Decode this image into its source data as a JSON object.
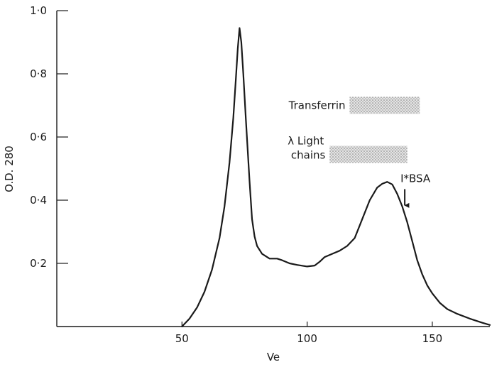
{
  "chart_data": {
    "type": "line",
    "xlabel": "Ve",
    "ylabel": "O.D. 280",
    "xlim": [
      0,
      173
    ],
    "ylim": [
      0,
      1.0
    ],
    "x_ticks": [
      {
        "value": 50,
        "label": "50"
      },
      {
        "value": 100,
        "label": "100"
      },
      {
        "value": 150,
        "label": "150"
      }
    ],
    "y_ticks": [
      {
        "value": 0.2,
        "label": "0·2"
      },
      {
        "value": 0.4,
        "label": "0·4"
      },
      {
        "value": 0.6,
        "label": "0·6"
      },
      {
        "value": 0.8,
        "label": "0·8"
      },
      {
        "value": 1.0,
        "label": "1·0"
      }
    ],
    "grid": false,
    "series": [
      {
        "x": [
          50,
          53,
          56,
          59,
          62,
          65,
          67,
          69,
          70.5,
          71.5,
          72.3,
          73,
          73.7,
          74.5,
          75.5,
          77,
          78,
          79,
          80,
          82,
          85,
          88,
          90,
          93,
          96,
          100,
          103,
          105,
          107,
          110,
          113,
          116,
          119,
          122,
          125,
          128,
          130,
          132,
          134,
          136,
          138,
          140,
          142,
          144,
          146,
          148,
          150,
          153,
          156,
          160,
          165,
          170,
          173
        ],
        "y": [
          0.0,
          0.025,
          0.06,
          0.11,
          0.18,
          0.28,
          0.38,
          0.52,
          0.66,
          0.78,
          0.88,
          0.945,
          0.9,
          0.8,
          0.66,
          0.46,
          0.34,
          0.285,
          0.255,
          0.23,
          0.215,
          0.215,
          0.21,
          0.2,
          0.195,
          0.19,
          0.193,
          0.205,
          0.22,
          0.23,
          0.24,
          0.255,
          0.28,
          0.34,
          0.4,
          0.44,
          0.452,
          0.458,
          0.45,
          0.42,
          0.38,
          0.33,
          0.27,
          0.21,
          0.165,
          0.13,
          0.105,
          0.075,
          0.055,
          0.04,
          0.025,
          0.012,
          0.005
        ]
      }
    ],
    "annotations": [
      {
        "text": "Transferrin",
        "band": [
          117,
          145
        ],
        "y": 0.7
      },
      {
        "text_line1": "λ Light",
        "text_line2": "chains",
        "band": [
          109,
          140
        ],
        "y": 0.545
      },
      {
        "text": "I*BSA",
        "arrow_x": 139,
        "arrow_from_y": 0.435,
        "arrow_to_y": 0.37
      }
    ]
  }
}
